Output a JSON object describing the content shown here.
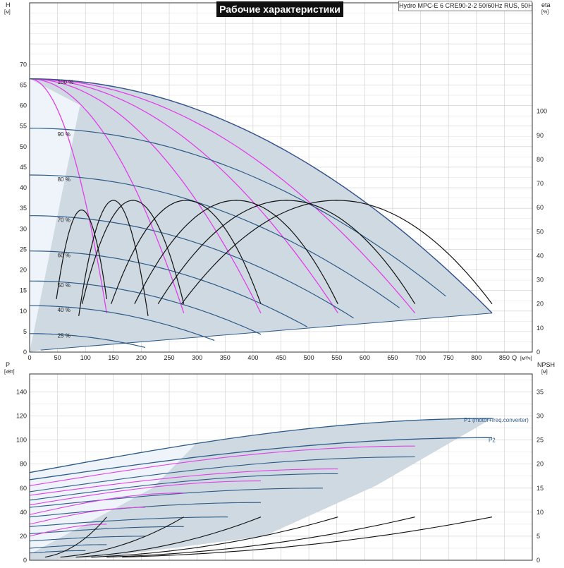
{
  "header": {
    "title": "Рабочие характеристики",
    "subtitle": "Hydro MPC-E 6 CRE90-2-2 50/60Hz RUS, 50Hz"
  },
  "colors": {
    "envelope": "#cfd9e2",
    "envelope_light": "#eef4fa",
    "curve_blue": "#2d5b88",
    "curve_magenta": "#e040e8",
    "curve_black": "#111111",
    "grid": "#cccccc"
  },
  "chart_data": [
    {
      "type": "line",
      "panel": "top",
      "xlabel": "Q",
      "xunit": "[м³/ч]",
      "ylabel": "H",
      "yunit": "[м]",
      "y2label": "eta",
      "y2unit": "[%]",
      "xlim": [
        0,
        900
      ],
      "ylim": [
        0,
        85
      ],
      "y2lim": [
        0,
        145
      ],
      "xticks": [
        0,
        50,
        100,
        150,
        200,
        250,
        300,
        350,
        400,
        450,
        500,
        550,
        600,
        650,
        700,
        750,
        800,
        850
      ],
      "yticks": [
        0,
        5,
        10,
        15,
        20,
        25,
        30,
        35,
        40,
        45,
        50,
        55,
        60,
        65,
        70
      ],
      "y2ticks": [
        0,
        10,
        20,
        30,
        40,
        50,
        60,
        70,
        80,
        90,
        100
      ],
      "speed_labels": [
        {
          "text": "100 %",
          "x": 50,
          "y": 65.8
        },
        {
          "text": "90 %",
          "x": 50,
          "y": 53.1
        },
        {
          "text": "80 %",
          "x": 50,
          "y": 42.1
        },
        {
          "text": "70 %",
          "x": 50,
          "y": 32.2
        },
        {
          "text": "60 %",
          "x": 50,
          "y": 23.6
        },
        {
          "text": "50 %",
          "x": 50,
          "y": 16.3
        },
        {
          "text": "40 %",
          "x": 50,
          "y": 10.3
        },
        {
          "text": "25 %",
          "x": 50,
          "y": 4.0
        }
      ],
      "envelope_max_curve": {
        "H0": 66.5,
        "Qmax": 828,
        "Hend": 9.5
      },
      "envelope_min_line": {
        "Q": [
          20,
          828
        ],
        "H": [
          0.5,
          9.5
        ]
      },
      "qh_curves_100": {
        "H0": 66.5,
        "ends": [
          {
            "Qmax": 138,
            "Hend": 9.5
          },
          {
            "Qmax": 276,
            "Hend": 9.5
          },
          {
            "Qmax": 414,
            "Hend": 9.5
          },
          {
            "Qmax": 552,
            "Hend": 9.5
          },
          {
            "Qmax": 690,
            "Hend": 9.5
          },
          {
            "Qmax": 828,
            "Hend": 9.5
          }
        ]
      },
      "qh_curves_speed": [
        {
          "speed": 90,
          "H0": 54.5,
          "Qmax": 745
        },
        {
          "speed": 80,
          "H0": 43.1,
          "Qmax": 662
        },
        {
          "speed": 70,
          "H0": 33.2,
          "Qmax": 580
        },
        {
          "speed": 60,
          "H0": 24.6,
          "Qmax": 497
        },
        {
          "speed": 50,
          "H0": 17.3,
          "Qmax": 414
        },
        {
          "speed": 40,
          "H0": 11.3,
          "Qmax": 331
        },
        {
          "speed": 25,
          "H0": 4.5,
          "Qmax": 207
        }
      ],
      "efficiency_curves": [
        {
          "peak_Q": 93,
          "peak_eta": 59,
          "Q_end": 138,
          "eta_end": 22
        },
        {
          "peak_Q": 150,
          "peak_eta": 63,
          "Q_end": 212,
          "eta_end": 15
        },
        {
          "peak_Q": 185,
          "peak_eta": 63,
          "Q_end": 276,
          "eta_end": 20
        },
        {
          "peak_Q": 280,
          "peak_eta": 63,
          "Q_end": 414,
          "eta_end": 20
        },
        {
          "peak_Q": 370,
          "peak_eta": 63,
          "Q_end": 552,
          "eta_end": 20
        },
        {
          "peak_Q": 460,
          "peak_eta": 63,
          "Q_end": 690,
          "eta_end": 20
        },
        {
          "peak_Q": 550,
          "peak_eta": 63,
          "Q_end": 828,
          "eta_end": 20
        }
      ]
    },
    {
      "type": "line",
      "panel": "bottom",
      "xlabel": "Q",
      "xunit": "[м³/ч]",
      "ylabel": "P",
      "yunit": "[кВт]",
      "y2label": "NPSH",
      "y2unit": "[м]",
      "xlim": [
        0,
        900
      ],
      "ylim": [
        0,
        155
      ],
      "y2lim": [
        0,
        38.75
      ],
      "yticks": [
        0,
        20,
        40,
        60,
        80,
        100,
        120,
        140
      ],
      "y2ticks": [
        0,
        5,
        10,
        15,
        20,
        25,
        30,
        35
      ],
      "series": [
        {
          "name": "P1 (motor+freq.converter)",
          "Q_end": 828,
          "P0": 73,
          "P_end": 118
        },
        {
          "name": "P2",
          "Q_end": 828,
          "P0": 67,
          "P_end": 102
        }
      ],
      "power_curves_blue": [
        {
          "P0": 57,
          "P_end": 86,
          "Q_end": 690
        },
        {
          "P0": 50,
          "P_end": 72,
          "Q_end": 552
        },
        {
          "P0": 44,
          "P_end": 60,
          "Q_end": 525
        },
        {
          "P0": 36,
          "P_end": 48,
          "Q_end": 414
        },
        {
          "P0": 28,
          "P_end": 36,
          "Q_end": 355
        },
        {
          "P0": 22,
          "P_end": 28,
          "Q_end": 276
        },
        {
          "P0": 16,
          "P_end": 20,
          "Q_end": 207
        },
        {
          "P0": 10,
          "P_end": 13,
          "Q_end": 138
        },
        {
          "P0": 6,
          "P_end": 8,
          "Q_end": 100
        }
      ],
      "power_curves_magenta": [
        {
          "P0": 62,
          "P_end": 95,
          "Q_end": 690
        },
        {
          "P0": 54,
          "P_end": 76,
          "Q_end": 552
        },
        {
          "P0": 46,
          "P_end": 66,
          "Q_end": 414
        },
        {
          "P0": 38,
          "P_end": 56,
          "Q_end": 276
        },
        {
          "P0": 30,
          "P_end": 44,
          "Q_end": 207
        },
        {
          "P0": 20,
          "P_end": 30,
          "Q_end": 138
        }
      ],
      "npsh_curves": [
        {
          "Q_end": 138,
          "N_end": 9
        },
        {
          "Q_end": 276,
          "N_end": 9
        },
        {
          "Q_end": 414,
          "N_end": 9
        },
        {
          "Q_end": 552,
          "N_end": 9
        },
        {
          "Q_end": 690,
          "N_end": 9
        },
        {
          "Q_end": 828,
          "N_end": 9
        }
      ]
    }
  ]
}
